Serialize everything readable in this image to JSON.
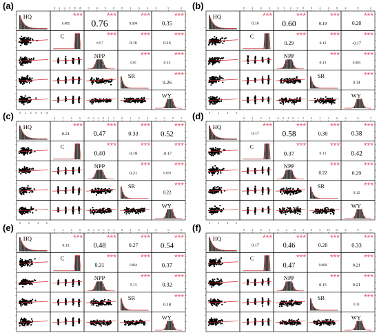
{
  "variables": [
    "HQ",
    "C",
    "NPP",
    "SR",
    "WY"
  ],
  "significance_mark": "***",
  "colors": {
    "star": "#e8506a",
    "curve": "#d62828",
    "hist": "#3a3a3a",
    "frame": "#000000"
  },
  "chart_data": [
    {
      "type": "scatter-matrix",
      "panel_label": "(a)",
      "correlations": [
        {
          "pair": [
            "HQ",
            "C"
          ],
          "value": "0.085",
          "sig": "***"
        },
        {
          "pair": [
            "HQ",
            "NPP"
          ],
          "value": "0.76",
          "sig": "***"
        },
        {
          "pair": [
            "HQ",
            "SR"
          ],
          "value": "0.094",
          "sig": "***"
        },
        {
          "pair": [
            "HQ",
            "WY"
          ],
          "value": "0.35",
          "sig": "***"
        },
        {
          "pair": [
            "C",
            "NPP"
          ],
          "value": "0.037",
          "sig": "***"
        },
        {
          "pair": [
            "C",
            "SR"
          ],
          "value": "0.16",
          "sig": "***"
        },
        {
          "pair": [
            "C",
            "WY"
          ],
          "value": "0.16",
          "sig": "***"
        },
        {
          "pair": [
            "NPP",
            "SR"
          ],
          "value": "0.05",
          "sig": "***"
        },
        {
          "pair": [
            "NPP",
            "WY"
          ],
          "value": "0.13",
          "sig": "***"
        },
        {
          "pair": [
            "SR",
            "WY"
          ],
          "value": "0.26",
          "sig": "***"
        }
      ],
      "top_ticks": [
        [
          "0",
          "2",
          "4",
          "6",
          "8",
          "10"
        ],
        [
          "-3",
          "-2",
          "-1",
          "0"
        ],
        [
          "0",
          "2",
          "4",
          "6"
        ],
        [
          "-2",
          "0",
          "2"
        ]
      ],
      "bottom_ticks": [
        "0",
        "2",
        "4",
        "6",
        "8",
        "10"
      ]
    },
    {
      "type": "scatter-matrix",
      "panel_label": "(b)",
      "correlations": [
        {
          "pair": [
            "HQ",
            "C"
          ],
          "value": "0.16",
          "sig": "***"
        },
        {
          "pair": [
            "HQ",
            "NPP"
          ],
          "value": "0.60",
          "sig": "***"
        },
        {
          "pair": [
            "HQ",
            "SR"
          ],
          "value": "0.19",
          "sig": "***"
        },
        {
          "pair": [
            "HQ",
            "WY"
          ],
          "value": "0.28",
          "sig": "***"
        },
        {
          "pair": [
            "C",
            "NPP"
          ],
          "value": "0.29",
          "sig": "***"
        },
        {
          "pair": [
            "C",
            "SR"
          ],
          "value": "0.12",
          "sig": "***"
        },
        {
          "pair": [
            "C",
            "WY"
          ],
          "value": "-0.17",
          "sig": "***"
        },
        {
          "pair": [
            "NPP",
            "SR"
          ],
          "value": "0.13",
          "sig": "***"
        },
        {
          "pair": [
            "NPP",
            "WY"
          ],
          "value": "0.083",
          "sig": "***"
        },
        {
          "pair": [
            "SR",
            "WY"
          ],
          "value": "0.14",
          "sig": "***"
        }
      ],
      "top_ticks": [
        [
          "0",
          "2",
          "4",
          "6"
        ],
        [
          "-4",
          "-3",
          "-2",
          "-1",
          "0"
        ],
        [
          "0",
          "2",
          "4",
          "6"
        ],
        [
          "-2",
          "0",
          "2"
        ]
      ],
      "bottom_ticks": [
        "0",
        "2",
        "4",
        "6"
      ]
    },
    {
      "type": "scatter-matrix",
      "panel_label": "(c)",
      "correlations": [
        {
          "pair": [
            "HQ",
            "C"
          ],
          "value": "0.21",
          "sig": "***"
        },
        {
          "pair": [
            "HQ",
            "NPP"
          ],
          "value": "0.47",
          "sig": "***"
        },
        {
          "pair": [
            "HQ",
            "SR"
          ],
          "value": "0.33",
          "sig": "***"
        },
        {
          "pair": [
            "HQ",
            "WY"
          ],
          "value": "0.52",
          "sig": "***"
        },
        {
          "pair": [
            "C",
            "NPP"
          ],
          "value": "0.40",
          "sig": "***"
        },
        {
          "pair": [
            "C",
            "SR"
          ],
          "value": "0.19",
          "sig": "***"
        },
        {
          "pair": [
            "C",
            "WY"
          ],
          "value": "-0.17",
          "sig": "***"
        },
        {
          "pair": [
            "NPP",
            "SR"
          ],
          "value": "0.21",
          "sig": "***"
        },
        {
          "pair": [
            "NPP",
            "WY"
          ],
          "value": "0.059",
          "sig": "***"
        },
        {
          "pair": [
            "SR",
            "WY"
          ],
          "value": "0.22",
          "sig": "***"
        }
      ],
      "top_ticks": [
        [
          "0",
          "2",
          "4",
          "6"
        ],
        [
          "-3",
          "-2",
          "-1",
          "0",
          "1",
          "2"
        ],
        [
          "0",
          "2",
          "4",
          "6"
        ],
        [
          "-4",
          "-2",
          "0",
          "2"
        ]
      ],
      "bottom_ticks": [
        "0",
        "2",
        "4",
        "6"
      ]
    },
    {
      "type": "scatter-matrix",
      "panel_label": "(d)",
      "correlations": [
        {
          "pair": [
            "HQ",
            "C"
          ],
          "value": "0.17",
          "sig": "***"
        },
        {
          "pair": [
            "HQ",
            "NPP"
          ],
          "value": "0.58",
          "sig": "***"
        },
        {
          "pair": [
            "HQ",
            "SR"
          ],
          "value": "0.30",
          "sig": "***"
        },
        {
          "pair": [
            "HQ",
            "WY"
          ],
          "value": "0.38",
          "sig": "***"
        },
        {
          "pair": [
            "C",
            "NPP"
          ],
          "value": "0.37",
          "sig": "***"
        },
        {
          "pair": [
            "C",
            "SR"
          ],
          "value": "0.13",
          "sig": "***"
        },
        {
          "pair": [
            "C",
            "WY"
          ],
          "value": "0.42",
          "sig": "***"
        },
        {
          "pair": [
            "NPP",
            "SR"
          ],
          "value": "0.22",
          "sig": "***"
        },
        {
          "pair": [
            "NPP",
            "WY"
          ],
          "value": "0.29",
          "sig": "***"
        },
        {
          "pair": [
            "SR",
            "WY"
          ],
          "value": "0.12",
          "sig": "***"
        }
      ],
      "top_ticks": [
        [
          "0",
          "2",
          "4",
          "6"
        ],
        [
          "-3",
          "-2",
          "-1",
          "0",
          "1",
          "2"
        ],
        [
          "0",
          "2",
          "4",
          "6"
        ],
        [
          "-2",
          "0",
          "2"
        ]
      ],
      "bottom_ticks": [
        "0",
        "2",
        "4",
        "6"
      ]
    },
    {
      "type": "scatter-matrix",
      "panel_label": "(e)",
      "correlations": [
        {
          "pair": [
            "HQ",
            "C"
          ],
          "value": "0.13",
          "sig": "***"
        },
        {
          "pair": [
            "HQ",
            "NPP"
          ],
          "value": "0.48",
          "sig": "***"
        },
        {
          "pair": [
            "HQ",
            "SR"
          ],
          "value": "0.27",
          "sig": "***"
        },
        {
          "pair": [
            "HQ",
            "WY"
          ],
          "value": "0.54",
          "sig": "***"
        },
        {
          "pair": [
            "C",
            "NPP"
          ],
          "value": "0.31",
          "sig": "***"
        },
        {
          "pair": [
            "C",
            "SR"
          ],
          "value": "0.064",
          "sig": "***"
        },
        {
          "pair": [
            "C",
            "WY"
          ],
          "value": "0.37",
          "sig": "***"
        },
        {
          "pair": [
            "NPP",
            "SR"
          ],
          "value": "0.13",
          "sig": "***"
        },
        {
          "pair": [
            "NPP",
            "WY"
          ],
          "value": "0.32",
          "sig": "***"
        },
        {
          "pair": [
            "SR",
            "WY"
          ],
          "value": "0.18",
          "sig": "***"
        }
      ],
      "top_ticks": [
        [
          "0",
          "2",
          "4",
          "6"
        ],
        [
          "-4",
          "-3",
          "-2",
          "-1",
          "0",
          "1"
        ],
        [
          "0",
          "2",
          "4",
          "6"
        ],
        [
          "-2",
          "0",
          "2"
        ]
      ],
      "bottom_ticks": [
        "0",
        "2",
        "4",
        "6"
      ]
    },
    {
      "type": "scatter-matrix",
      "panel_label": "(f)",
      "correlations": [
        {
          "pair": [
            "HQ",
            "C"
          ],
          "value": "0.17",
          "sig": "***"
        },
        {
          "pair": [
            "HQ",
            "NPP"
          ],
          "value": "0.46",
          "sig": "***"
        },
        {
          "pair": [
            "HQ",
            "SR"
          ],
          "value": "0.28",
          "sig": "***"
        },
        {
          "pair": [
            "HQ",
            "WY"
          ],
          "value": "0.33",
          "sig": "***"
        },
        {
          "pair": [
            "C",
            "NPP"
          ],
          "value": "0.47",
          "sig": "***"
        },
        {
          "pair": [
            "C",
            "SR"
          ],
          "value": "0.089",
          "sig": "***"
        },
        {
          "pair": [
            "C",
            "WY"
          ],
          "value": "0.21",
          "sig": "***"
        },
        {
          "pair": [
            "NPP",
            "SR"
          ],
          "value": "0.15",
          "sig": "***"
        },
        {
          "pair": [
            "NPP",
            "WY"
          ],
          "value": "0.21",
          "sig": "***"
        },
        {
          "pair": [
            "SR",
            "WY"
          ],
          "value": "0.11",
          "sig": "***"
        }
      ],
      "top_ticks": [
        [
          "0",
          "2",
          "4",
          "6"
        ],
        [
          "-4",
          "-2",
          "0",
          "2"
        ],
        [
          "0",
          "5",
          "10",
          "15"
        ],
        [
          "-2",
          "0",
          "2"
        ]
      ],
      "bottom_ticks": [
        "0",
        "2",
        "4",
        "6"
      ]
    }
  ]
}
